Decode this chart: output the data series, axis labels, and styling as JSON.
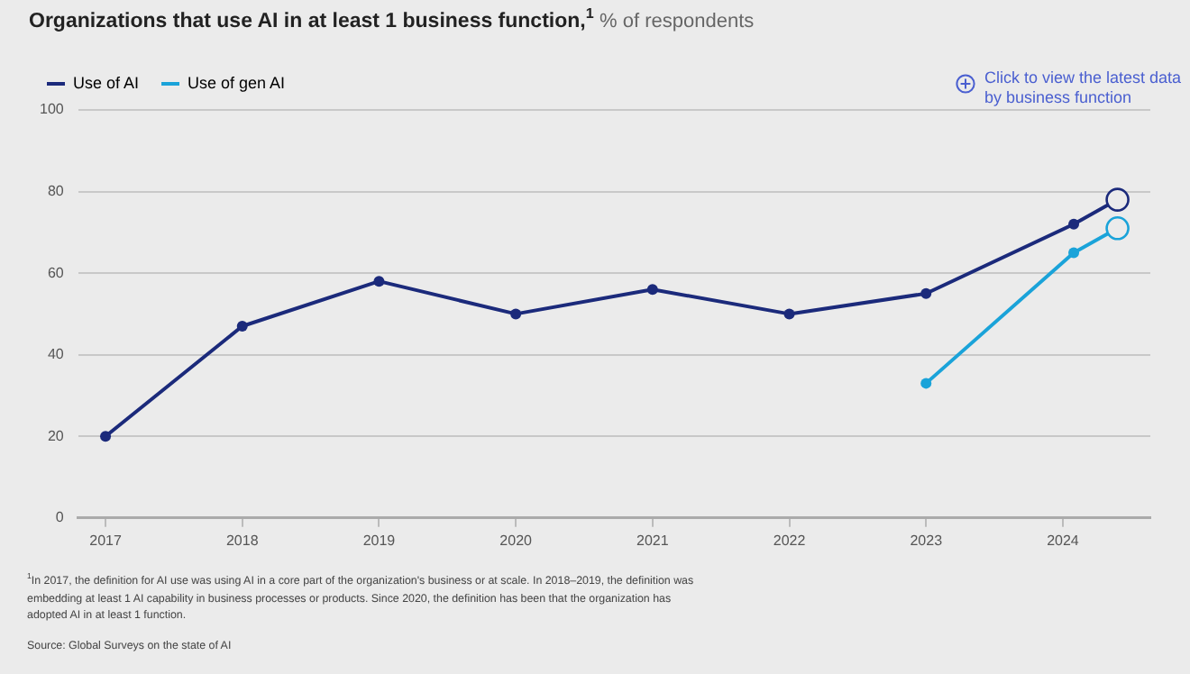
{
  "chart_data": {
    "type": "line",
    "title": "Organizations that use AI in at least 1 business function,$^{1}$",
    "subtitle": "% of respondents",
    "series": [
      {
        "name": "Use of AI",
        "color": "#1b2a7b",
        "x": [
          2017,
          2018,
          2019,
          2020,
          2021,
          2022,
          2023,
          2024.08,
          2024.4
        ],
        "values": [
          20,
          47,
          58,
          50,
          56,
          50,
          55,
          72,
          78
        ]
      },
      {
        "name": "Use of gen AI",
        "color": "#1aa3d9",
        "x": [
          2023,
          2024.08,
          2024.4
        ],
        "values": [
          33,
          65,
          71
        ]
      }
    ],
    "xlim": [
      2016.8,
      2024.64
    ],
    "xticks": [
      2017,
      2018,
      2019,
      2020,
      2021,
      2022,
      2023,
      2024
    ],
    "ylim": [
      0,
      100
    ],
    "yticks": [
      0,
      20,
      40,
      60,
      80,
      100
    ],
    "grid": "y",
    "legend": "top left",
    "marker": "circle",
    "line_style": "solid",
    "annotations": [
      "Click to view the latest data by business function",
      "$^{1}$In 2017, the definition for AI use was using AI in a core part of the organization's business or at scale. In 2018–2019, the definition was embedding at least 1 AI capability in business processes or products. Since 2020, the definition has been that the organization has adopted AI in at least 1 function.",
      "Source: Global Surveys on the state of AI"
    ]
  }
}
